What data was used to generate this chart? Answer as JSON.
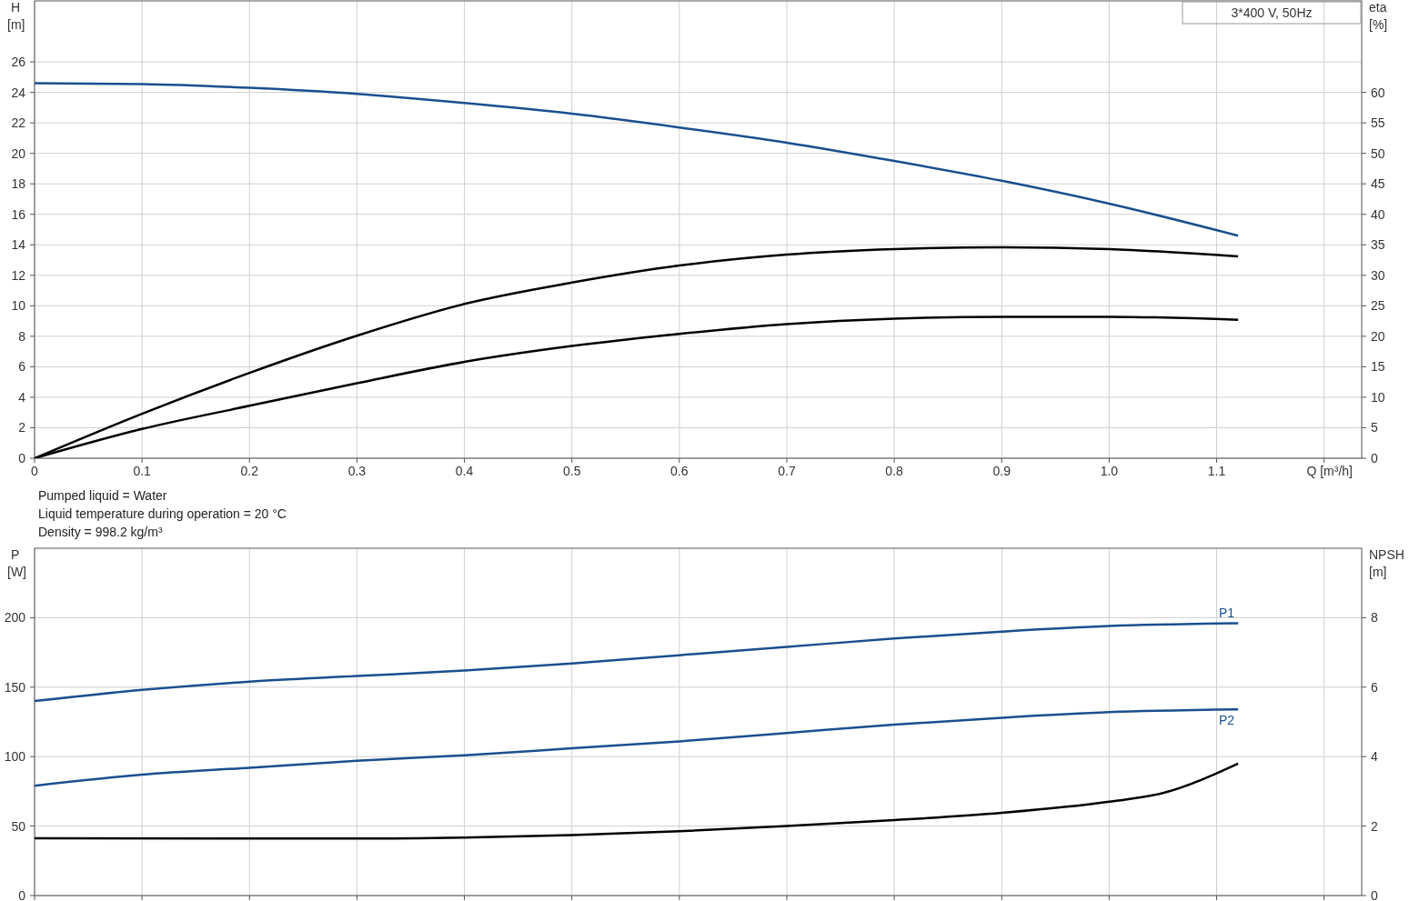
{
  "chart_data": [
    {
      "type": "line",
      "subtitle": "3*400 V, 50Hz",
      "xlabel": "Q [m³/h]",
      "ylabel": "H [m]",
      "y2label": "eta [%]",
      "xlim": [
        0,
        1.235
      ],
      "xticks": [
        0,
        0.1,
        0.2,
        0.3,
        0.4,
        0.5,
        0.6,
        0.7,
        0.8,
        0.9,
        {
          "value": 1,
          "label": "1.0"
        },
        1.1,
        {
          "value": 1.2,
          "label": null
        }
      ],
      "ylim": [
        0,
        30
      ],
      "yticks": [
        0,
        2,
        4,
        6,
        8,
        10,
        12,
        14,
        16,
        18,
        20,
        22,
        24,
        26
      ],
      "y2lim": [
        0,
        75
      ],
      "y2ticks": [
        0,
        5,
        10,
        15,
        20,
        25,
        30,
        35,
        40,
        45,
        50,
        55,
        60
      ],
      "grid": true,
      "annotations": [
        "Pumped liquid = Water",
        "Liquid temperature during operation = 20 °C",
        "Density = 998.2 kg/m³"
      ],
      "series": [
        {
          "color": "#1a4f8e",
          "x": [
            0,
            0.1,
            0.2,
            0.3,
            0.4,
            0.5,
            0.6,
            0.7,
            0.8,
            0.9,
            1.0,
            1.12
          ],
          "values": [
            24.6,
            24.55,
            24.3,
            23.9,
            23.3,
            22.6,
            21.7,
            20.7,
            19.5,
            18.2,
            16.7,
            14.6
          ]
        },
        {
          "color": "#000000",
          "axis": "y2",
          "x": [
            0,
            0.1,
            0.2,
            0.3,
            0.4,
            0.5,
            0.6,
            0.7,
            0.8,
            0.9,
            1.0,
            1.12
          ],
          "values": [
            0,
            7.3,
            14.0,
            20.1,
            25.3,
            28.8,
            31.6,
            33.4,
            34.3,
            34.6,
            34.3,
            33.1
          ]
        },
        {
          "color": "#000000",
          "axis": "y2",
          "x": [
            0,
            0.1,
            0.2,
            0.3,
            0.4,
            0.5,
            0.6,
            0.7,
            0.8,
            0.9,
            1.0,
            1.12
          ],
          "values": [
            0,
            4.8,
            8.6,
            12.3,
            15.8,
            18.4,
            20.4,
            22.0,
            22.9,
            23.2,
            23.2,
            22.7
          ]
        }
      ]
    },
    {
      "type": "line",
      "ylabel": "P [W]",
      "y2label": "NPSH [m]",
      "xlim": [
        0,
        1.235
      ],
      "xticks": [
        0,
        0.1,
        0.2,
        0.3,
        0.4,
        0.5,
        0.6,
        0.7,
        0.8,
        0.9,
        1,
        1.1,
        1.2
      ],
      "ylim": [
        0,
        250
      ],
      "yticks": [
        0,
        50,
        100,
        150,
        200
      ],
      "y2lim": [
        0,
        10
      ],
      "y2ticks": [
        0,
        2,
        4,
        6,
        8
      ],
      "grid": true,
      "tick_labels": "y",
      "series": [
        {
          "name": "P1",
          "color": "#1a4f8e",
          "x": [
            0,
            0.1,
            0.2,
            0.3,
            0.4,
            0.5,
            0.6,
            0.7,
            0.8,
            0.9,
            1.0,
            1.12
          ],
          "values": [
            140,
            148,
            154,
            158,
            162,
            167,
            173,
            179,
            185,
            190,
            194,
            196
          ]
        },
        {
          "name": "P2",
          "color": "#1a4f8e",
          "x": [
            0,
            0.1,
            0.2,
            0.3,
            0.4,
            0.5,
            0.6,
            0.7,
            0.8,
            0.9,
            1.0,
            1.12
          ],
          "values": [
            79,
            87,
            92,
            97,
            101,
            106,
            111,
            117,
            123,
            128,
            132,
            134
          ]
        },
        {
          "color": "#000000",
          "axis": "y2",
          "x": [
            0,
            0.3,
            0.4,
            0.5,
            0.6,
            0.7,
            0.8,
            0.9,
            1.0,
            1.05,
            1.12
          ],
          "values": [
            1.65,
            1.64,
            1.67,
            1.74,
            1.85,
            2.0,
            2.17,
            2.38,
            2.7,
            2.95,
            3.8
          ]
        }
      ]
    }
  ]
}
